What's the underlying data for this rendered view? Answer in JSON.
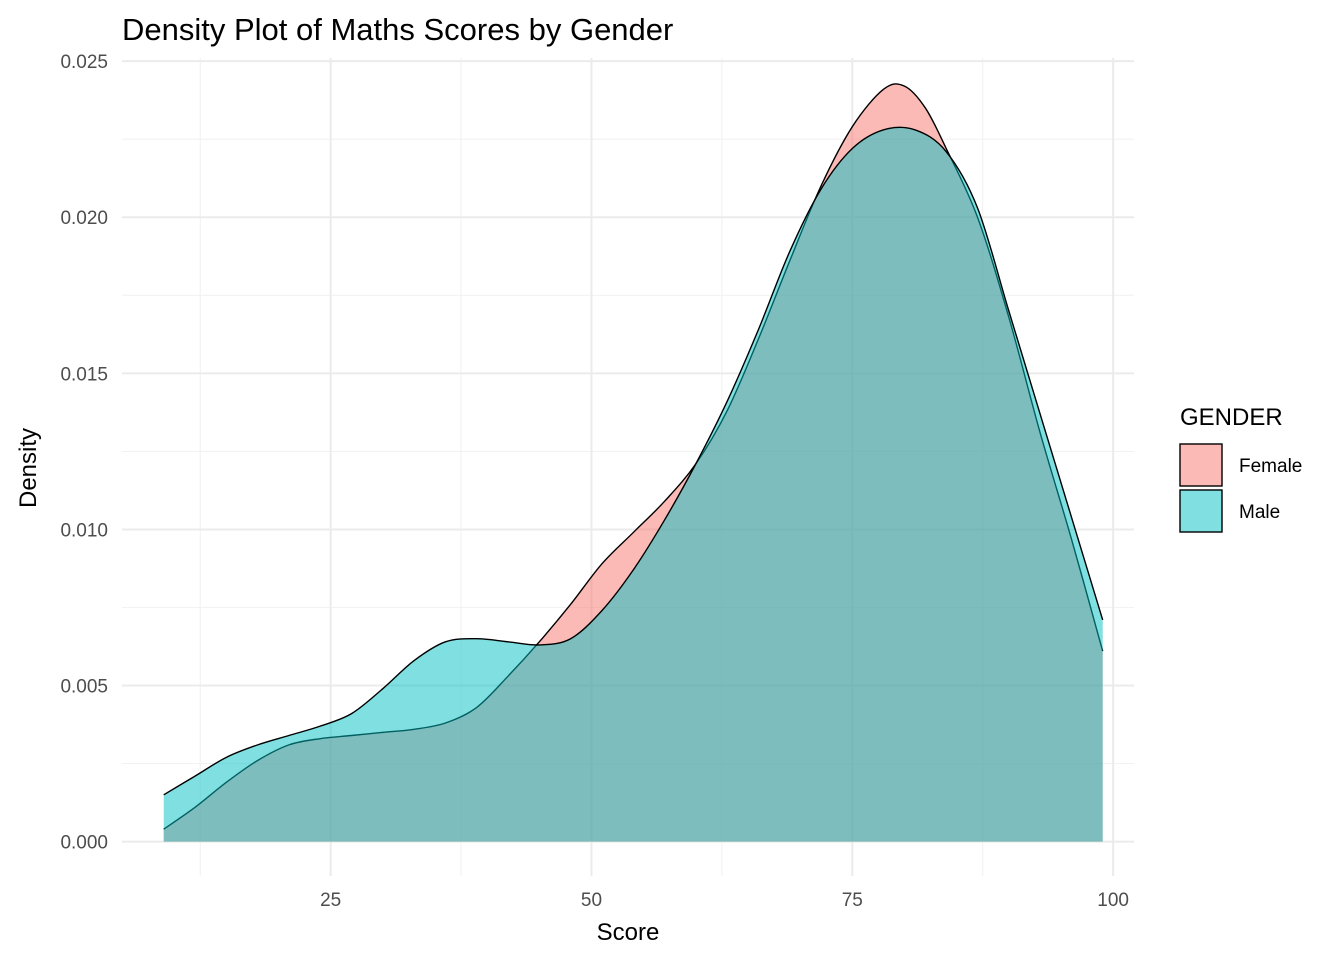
{
  "chart_data": {
    "type": "area",
    "title": "Density Plot of Maths Scores by Gender",
    "xlabel": "Score",
    "ylabel": "Density",
    "xlim": [
      5,
      102
    ],
    "ylim": [
      -0.0011,
      0.0251
    ],
    "x_ticks": [
      25,
      50,
      75,
      100
    ],
    "x_tick_labels": [
      "25",
      "50",
      "75",
      "100"
    ],
    "y_ticks": [
      0,
      0.005,
      0.01,
      0.015,
      0.02,
      0.025
    ],
    "y_tick_labels": [
      "0.000",
      "0.005",
      "0.010",
      "0.015",
      "0.020",
      "0.025"
    ],
    "grid": true,
    "legend": {
      "title": "GENDER",
      "position": "right"
    },
    "series": [
      {
        "name": "Female",
        "color": "#F8766D",
        "x": [
          9,
          12,
          15,
          18,
          21,
          24,
          27,
          30,
          33,
          36,
          39,
          42,
          45,
          48,
          51,
          54,
          57,
          60,
          63,
          66,
          69,
          72,
          75,
          78,
          80,
          82,
          84,
          87,
          90,
          93,
          96,
          99
        ],
        "y": [
          0.0004,
          0.0011,
          0.0019,
          0.0026,
          0.0031,
          0.0033,
          0.0034,
          0.0035,
          0.0036,
          0.0038,
          0.0043,
          0.0053,
          0.0064,
          0.0076,
          0.0089,
          0.0099,
          0.0109,
          0.0121,
          0.0138,
          0.0161,
          0.0186,
          0.021,
          0.0229,
          0.0241,
          0.0242,
          0.0235,
          0.0222,
          0.02,
          0.0168,
          0.0131,
          0.0097,
          0.0061
        ]
      },
      {
        "name": "Male",
        "color": "#00BFC4",
        "x": [
          9,
          12,
          15,
          18,
          21,
          24,
          27,
          30,
          33,
          36,
          39,
          42,
          45,
          48,
          51,
          54,
          57,
          60,
          63,
          66,
          69,
          72,
          75,
          78,
          81,
          84,
          87,
          90,
          93,
          96,
          99
        ],
        "y": [
          0.0015,
          0.0021,
          0.0027,
          0.0031,
          0.0034,
          0.0037,
          0.0041,
          0.0049,
          0.0058,
          0.0064,
          0.0065,
          0.0064,
          0.0063,
          0.0065,
          0.0074,
          0.0087,
          0.0103,
          0.0121,
          0.0141,
          0.0164,
          0.0189,
          0.0209,
          0.0222,
          0.0228,
          0.0228,
          0.0221,
          0.0203,
          0.017,
          0.0137,
          0.0104,
          0.0071
        ]
      }
    ]
  }
}
